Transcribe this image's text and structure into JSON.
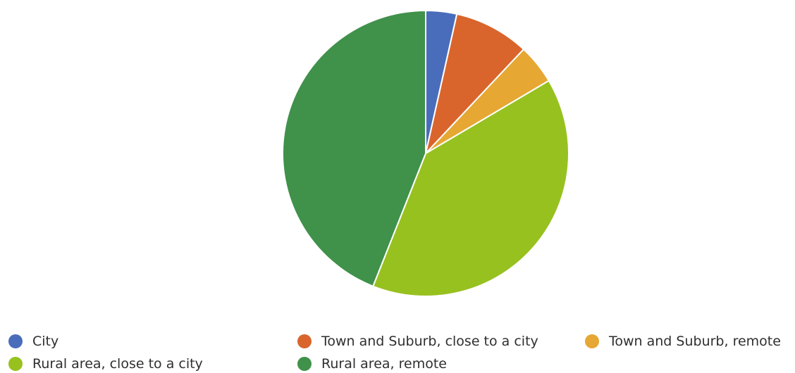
{
  "chart_data": {
    "type": "pie",
    "title": "",
    "slices": [
      {
        "label": "City",
        "value": 3.5,
        "color": "#4a6dbb"
      },
      {
        "label": "Town and Suburb, close to a city",
        "value": 8.5,
        "color": "#d9652c"
      },
      {
        "label": "Town and Suburb, remote",
        "value": 4.5,
        "color": "#e6a733"
      },
      {
        "label": "Rural area, close to a city",
        "value": 39.5,
        "color": "#97c11f"
      },
      {
        "label": "Rural area, remote",
        "value": 44.0,
        "color": "#40914a"
      }
    ],
    "legend": {
      "placement": "bottom",
      "items": [
        {
          "label": "City",
          "color": "#4a6dbb"
        },
        {
          "label": "Town and Suburb, close to a city",
          "color": "#d9652c"
        },
        {
          "label": "Town and Suburb, remote",
          "color": "#e6a733"
        },
        {
          "label": "Rural area, close to a city",
          "color": "#97c11f"
        },
        {
          "label": "Rural area, remote",
          "color": "#40914a"
        }
      ]
    }
  }
}
